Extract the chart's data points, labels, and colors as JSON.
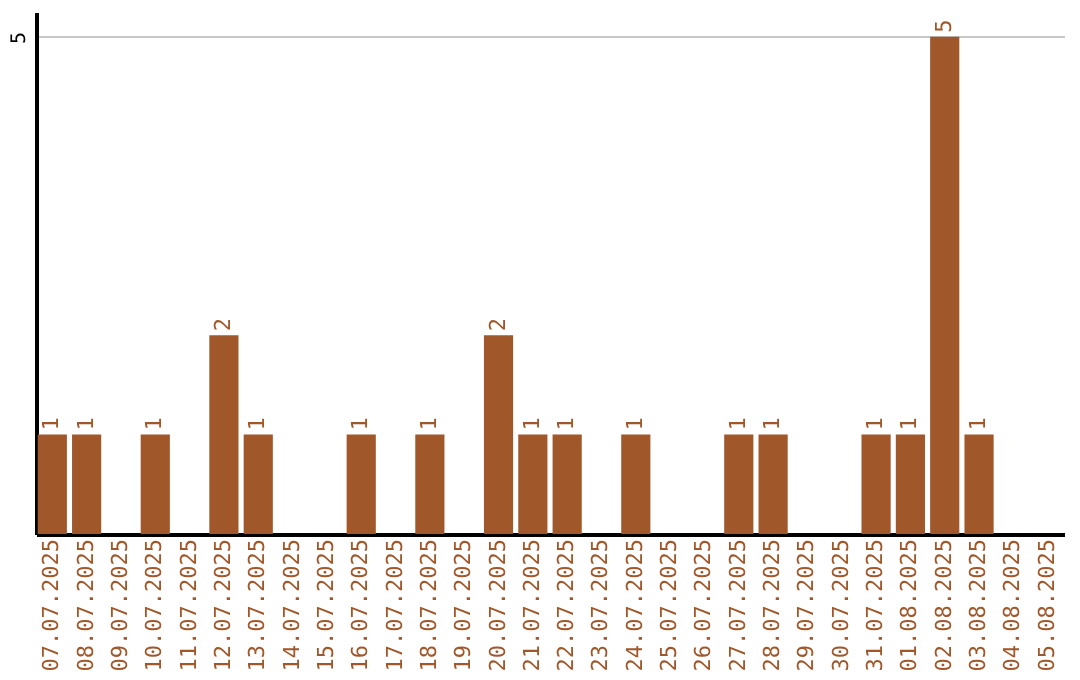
{
  "chart_data": {
    "type": "bar",
    "categories": [
      "07.07.2025",
      "08.07.2025",
      "09.07.2025",
      "10.07.2025",
      "11.07.2025",
      "12.07.2025",
      "13.07.2025",
      "14.07.2025",
      "15.07.2025",
      "16.07.2025",
      "17.07.2025",
      "18.07.2025",
      "19.07.2025",
      "20.07.2025",
      "21.07.2025",
      "22.07.2025",
      "23.07.2025",
      "24.07.2025",
      "25.07.2025",
      "26.07.2025",
      "27.07.2025",
      "28.07.2025",
      "29.07.2025",
      "30.07.2025",
      "31.07.2025",
      "01.08.2025",
      "02.08.2025",
      "03.08.2025",
      "04.08.2025",
      "05.08.2025"
    ],
    "values": [
      1,
      1,
      null,
      1,
      null,
      2,
      1,
      null,
      null,
      1,
      null,
      1,
      null,
      2,
      1,
      1,
      null,
      1,
      null,
      null,
      1,
      1,
      null,
      null,
      1,
      1,
      5,
      1,
      null,
      null
    ],
    "color": "#a0572a",
    "ylim": [
      0,
      5.25
    ],
    "yticks": [
      5
    ],
    "grid": "y",
    "data_labels": true
  }
}
